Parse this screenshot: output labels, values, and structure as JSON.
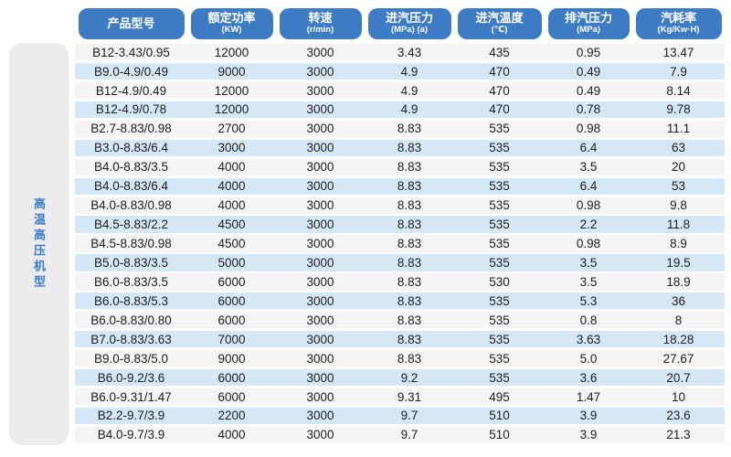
{
  "sidebar": {
    "label": "高温高压机型"
  },
  "header": {
    "columns": [
      {
        "label": "产品型号",
        "unit": ""
      },
      {
        "label": "额定功率",
        "unit": "(KW)"
      },
      {
        "label": "转速",
        "unit": "(r/min)"
      },
      {
        "label": "进汽压力",
        "unit": "(MPa) (a)"
      },
      {
        "label": "进汽温度",
        "unit": "(℃)"
      },
      {
        "label": "排汽压力",
        "unit": "(MPa)"
      },
      {
        "label": "汽耗率",
        "unit": "(Kg/Kw·H)"
      }
    ]
  },
  "chart_data": {
    "type": "table",
    "title": "高温高压机型产品参数表",
    "columns": [
      "产品型号",
      "额定功率(KW)",
      "转速(r/min)",
      "进汽压力(MPa)(a)",
      "进汽温度(℃)",
      "排汽压力(MPa)",
      "汽耗率(Kg/Kw·H)"
    ],
    "rows": [
      [
        "B12-3.43/0.95",
        "12000",
        "3000",
        "3.43",
        "435",
        "0.95",
        "13.47"
      ],
      [
        "B9.0-4.9/0.49",
        "9000",
        "3000",
        "4.9",
        "470",
        "0.49",
        "7.9"
      ],
      [
        "B12-4.9/0.49",
        "12000",
        "3000",
        "4.9",
        "470",
        "0.49",
        "8.14"
      ],
      [
        "B12-4.9/0.78",
        "12000",
        "3000",
        "4.9",
        "470",
        "0.78",
        "9.78"
      ],
      [
        "B2.7-8.83/0.98",
        "2700",
        "3000",
        "8.83",
        "535",
        "0.98",
        "11.1"
      ],
      [
        "B3.0-8.83/6.4",
        "3000",
        "3000",
        "8.83",
        "535",
        "6.4",
        "63"
      ],
      [
        "B4.0-8.83/3.5",
        "4000",
        "3000",
        "8.83",
        "535",
        "3.5",
        "20"
      ],
      [
        "B4.0-8.83/6.4",
        "4000",
        "3000",
        "8.83",
        "535",
        "6.4",
        "53"
      ],
      [
        "B4.0-8.83/0.98",
        "4000",
        "3000",
        "8.83",
        "535",
        "0.98",
        "9.8"
      ],
      [
        "B4.5-8.83/2.2",
        "4500",
        "3000",
        "8.83",
        "535",
        "2.2",
        "11.8"
      ],
      [
        "B4.5-8.83/0.98",
        "4500",
        "3000",
        "8.83",
        "535",
        "0.98",
        "8.9"
      ],
      [
        "B5.0-8.83/3.5",
        "5000",
        "3000",
        "8.83",
        "535",
        "3.5",
        "19.5"
      ],
      [
        "B6.0-8.83/3.5",
        "6000",
        "3000",
        "8.83",
        "530",
        "3.5",
        "18.9"
      ],
      [
        "B6.0-8.83/5.3",
        "6000",
        "3000",
        "8.83",
        "535",
        "5.3",
        "36"
      ],
      [
        "B6.0-8.83/0.80",
        "6000",
        "3000",
        "8.83",
        "535",
        "0.8",
        "8"
      ],
      [
        "B7.0-8.83/3.63",
        "7000",
        "3000",
        "8.83",
        "535",
        "3.63",
        "18.28"
      ],
      [
        "B9.0-8.83/5.0",
        "9000",
        "3000",
        "8.83",
        "535",
        "5.0",
        "27.67"
      ],
      [
        "B6.0-9.2/3.6",
        "6000",
        "3000",
        "9.2",
        "535",
        "3.6",
        "20.7"
      ],
      [
        "B6.0-9.31/1.47",
        "6000",
        "3000",
        "9.31",
        "495",
        "1.47",
        "10"
      ],
      [
        "B2.2-9.7/3.9",
        "2200",
        "3000",
        "9.7",
        "510",
        "3.9",
        "23.6"
      ],
      [
        "B4.0-9.7/3.9",
        "4000",
        "3000",
        "9.7",
        "510",
        "3.9",
        "21.3"
      ]
    ]
  },
  "colors": {
    "header_bg": "#3d7bc5",
    "header_text": "#ffffff",
    "row_bg": "#f5f5f7",
    "row_alt_bg": "#d6e7f6",
    "sidebar_bg": "#ececee",
    "sidebar_text": "#3e7cc7",
    "cell_text": "#1d1d1f"
  }
}
